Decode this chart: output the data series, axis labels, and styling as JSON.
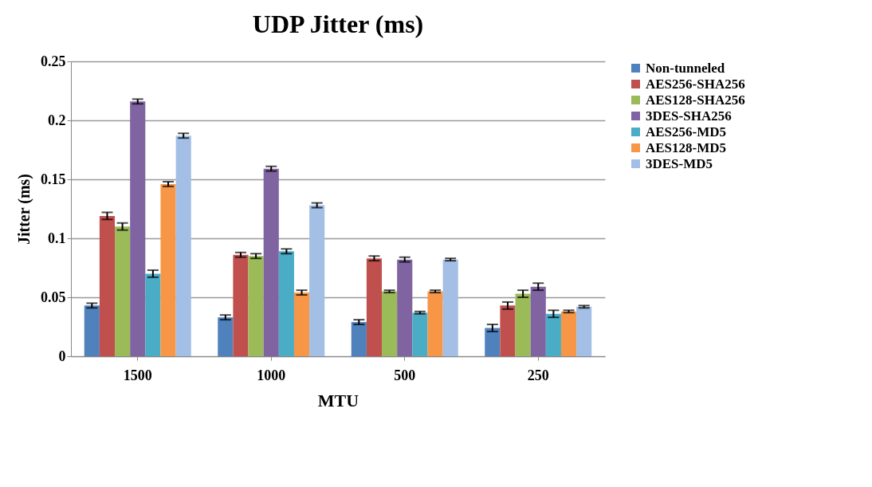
{
  "chart_data": {
    "type": "bar",
    "title": "UDP Jitter (ms)",
    "xlabel": "MTU",
    "ylabel": "Jitter (ms)",
    "categories": [
      "1500",
      "1000",
      "500",
      "250"
    ],
    "series": [
      {
        "name": "Non-tunneled",
        "color": "#4f81bd",
        "values": [
          0.043,
          0.033,
          0.029,
          0.024
        ],
        "errors": [
          0.002,
          0.002,
          0.002,
          0.003
        ]
      },
      {
        "name": "AES256-SHA256",
        "color": "#c0504d",
        "values": [
          0.119,
          0.086,
          0.083,
          0.043
        ],
        "errors": [
          0.003,
          0.002,
          0.002,
          0.003
        ]
      },
      {
        "name": "AES128-SHA256",
        "color": "#9bbb59",
        "values": [
          0.11,
          0.085,
          0.055,
          0.053
        ],
        "errors": [
          0.003,
          0.002,
          0.001,
          0.003
        ]
      },
      {
        "name": "3DES-SHA256",
        "color": "#8064a2",
        "values": [
          0.216,
          0.159,
          0.082,
          0.059
        ],
        "errors": [
          0.002,
          0.002,
          0.002,
          0.003
        ]
      },
      {
        "name": "AES256-MD5",
        "color": "#4bacc6",
        "values": [
          0.07,
          0.089,
          0.037,
          0.036
        ],
        "errors": [
          0.003,
          0.002,
          0.001,
          0.003
        ]
      },
      {
        "name": "AES128-MD5",
        "color": "#f79646",
        "values": [
          0.146,
          0.054,
          0.055,
          0.038
        ],
        "errors": [
          0.002,
          0.002,
          0.001,
          0.001
        ]
      },
      {
        "name": "3DES-MD5",
        "color": "#a3bfe6",
        "values": [
          0.187,
          0.128,
          0.082,
          0.042
        ],
        "errors": [
          0.002,
          0.002,
          0.001,
          0.001
        ]
      }
    ],
    "ylim": [
      0,
      0.25
    ],
    "yticks": [
      0,
      0.05,
      0.1,
      0.15,
      0.2,
      0.25
    ],
    "grid": "y",
    "legend": "top right"
  }
}
